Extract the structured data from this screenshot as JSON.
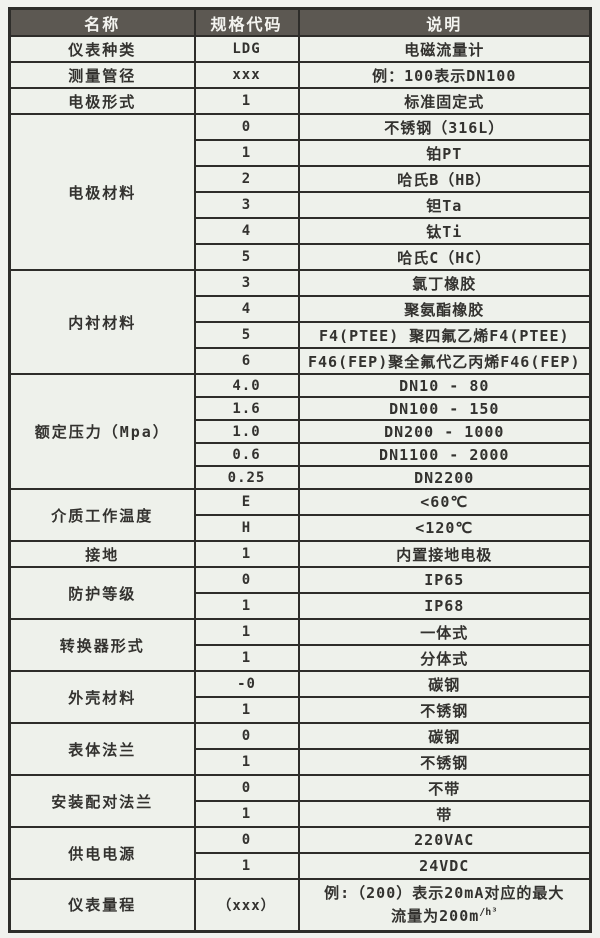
{
  "table": {
    "headers": [
      "名称",
      "规格代码",
      "说明"
    ],
    "groups": [
      {
        "name": "仪表种类",
        "rows": [
          {
            "code": "LDG",
            "desc": "电磁流量计"
          }
        ]
      },
      {
        "name": "测量管径",
        "rows": [
          {
            "code": "xxx",
            "desc": "例：100表示DN100"
          }
        ]
      },
      {
        "name": "电极形式",
        "rows": [
          {
            "code": "1",
            "desc": "标准固定式"
          }
        ]
      },
      {
        "name": "电极材料",
        "rows": [
          {
            "code": "0",
            "desc": "不锈钢（316L）"
          },
          {
            "code": "1",
            "desc": "铂PT"
          },
          {
            "code": "2",
            "desc": "哈氏B（HB）"
          },
          {
            "code": "3",
            "desc": "钽Ta"
          },
          {
            "code": "4",
            "desc": "钛Ti"
          },
          {
            "code": "5",
            "desc": "哈氏C（HC）"
          }
        ]
      },
      {
        "name": "内衬材料",
        "rows": [
          {
            "code": "3",
            "desc": "氯丁橡胶"
          },
          {
            "code": "4",
            "desc": "聚氨酯橡胶"
          },
          {
            "code": "5",
            "desc": "F4(PTEE) 聚四氟乙烯F4(PTEE)"
          },
          {
            "code": "6",
            "desc": "F46(FEP)聚全氟代乙丙烯F46(FEP)"
          }
        ]
      },
      {
        "name": "额定压力（Mpa）",
        "compact": true,
        "rows": [
          {
            "code": "4.0",
            "desc": "DN10 - 80"
          },
          {
            "code": "1.6",
            "desc": "DN100 - 150"
          },
          {
            "code": "1.0",
            "desc": "DN200 - 1000"
          },
          {
            "code": "0.6",
            "desc": "DN1100 - 2000"
          },
          {
            "code": "0.25",
            "desc": "DN2200"
          }
        ]
      },
      {
        "name": "介质工作温度",
        "rows": [
          {
            "code": "E",
            "desc": "<60℃"
          },
          {
            "code": "H",
            "desc": "<120℃"
          }
        ]
      },
      {
        "name": "接地",
        "rows": [
          {
            "code": "1",
            "desc": "内置接地电极"
          }
        ]
      },
      {
        "name": "防护等级",
        "rows": [
          {
            "code": "0",
            "desc": "IP65"
          },
          {
            "code": "1",
            "desc": "IP68"
          }
        ]
      },
      {
        "name": "转换器形式",
        "rows": [
          {
            "code": "1",
            "desc": "一体式"
          },
          {
            "code": "1",
            "desc": "分体式"
          }
        ]
      },
      {
        "name": "外壳材料",
        "rows": [
          {
            "code": "-0",
            "desc": "碳钢"
          },
          {
            "code": "1",
            "desc": "不锈钢"
          }
        ]
      },
      {
        "name": "表体法兰",
        "rows": [
          {
            "code": "0",
            "desc": "碳钢"
          },
          {
            "code": "1",
            "desc": "不锈钢"
          }
        ]
      },
      {
        "name": "安装配对法兰",
        "rows": [
          {
            "code": "0",
            "desc": "不带"
          },
          {
            "code": "1",
            "desc": "带"
          }
        ]
      },
      {
        "name": "供电电源",
        "rows": [
          {
            "code": "0",
            "desc": "220VAC"
          },
          {
            "code": "1",
            "desc": "24VDC"
          }
        ]
      },
      {
        "name": "仪表量程",
        "tall": true,
        "rows": [
          {
            "code": "（xxx）",
            "desc_line1": "例:（200）表示20mA对应的最大",
            "desc_line2": "流量为200m",
            "desc_sup": "/h³"
          }
        ]
      }
    ]
  }
}
